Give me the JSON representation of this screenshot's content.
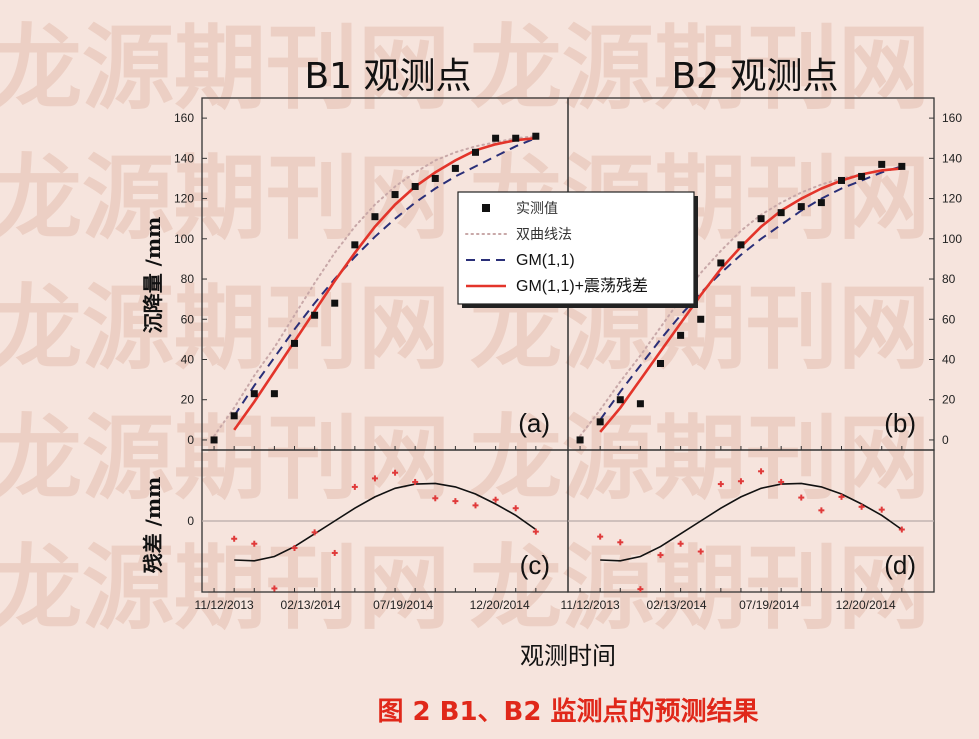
{
  "caption": "图 2   B1、B2 监测点的预测结果",
  "x_label": "观测时间",
  "y_label_top": "沉降量 /mm",
  "y_label_bottom": "残差 /mm",
  "watermark_text": "龙源期刊网",
  "colors": {
    "background": "#f6e4dd",
    "measured": "#111111",
    "double_curve": "#c8a8a8",
    "gm": "#2a2f78",
    "gm_resid": "#e3342a",
    "residual_points": "#e03a3a",
    "residual_curve": "#111111",
    "zero_line": "#b8aaa8",
    "caption": "#e0281a"
  },
  "legend": {
    "items": [
      {
        "key": "measured",
        "label": "实测值"
      },
      {
        "key": "double",
        "label": "双曲线法"
      },
      {
        "key": "gm",
        "label": "GM(1,1)"
      },
      {
        "key": "gmres",
        "label": "GM(1,1)+震荡残差"
      }
    ]
  },
  "chart_data": [
    {
      "panel": "a",
      "title": "B1 观测点",
      "letter": "(a)",
      "type": "line",
      "ylim": [
        -5,
        170
      ],
      "yticks": [
        0,
        20,
        40,
        60,
        80,
        100,
        120,
        140,
        160
      ],
      "x_tick_labels": [
        "11/12/2013",
        "02/13/2014",
        "07/19/2014",
        "12/20/2014"
      ],
      "x": [
        0,
        1,
        2,
        3,
        4,
        5,
        6,
        7,
        8,
        9,
        10,
        11,
        12,
        13,
        14,
        15,
        16
      ],
      "series": [
        {
          "name": "实测值",
          "key": "measured",
          "values": [
            0,
            12,
            23,
            23,
            48,
            62,
            68,
            97,
            111,
            122,
            126,
            130,
            135,
            143,
            150,
            150,
            151
          ]
        },
        {
          "name": "双曲线法",
          "key": "double",
          "values": [
            2,
            16,
            32,
            46,
            62,
            78,
            93,
            106,
            117,
            126,
            133,
            139,
            143,
            146,
            148,
            150,
            151
          ]
        },
        {
          "name": "GM(1,1)",
          "key": "gm",
          "values": [
            null,
            12,
            27,
            41,
            55,
            68,
            80,
            91,
            101,
            110,
            118,
            125,
            131,
            136,
            141,
            146,
            150
          ]
        },
        {
          "name": "GM(1,1)+震荡残差",
          "key": "gmres",
          "values": [
            null,
            5,
            19,
            34,
            49,
            64,
            79,
            93,
            106,
            117,
            126,
            133,
            139,
            144,
            147,
            149,
            150
          ]
        }
      ]
    },
    {
      "panel": "b",
      "title": "B2 观测点",
      "letter": "(b)",
      "type": "line",
      "ylim": [
        -5,
        170
      ],
      "yticks": [
        0,
        20,
        40,
        60,
        80,
        100,
        120,
        140,
        160
      ],
      "x_tick_labels": [
        "11/12/2013",
        "02/13/2014",
        "07/19/2014",
        "12/20/2014"
      ],
      "x": [
        0,
        1,
        2,
        3,
        4,
        5,
        6,
        7,
        8,
        9,
        10,
        11,
        12,
        13,
        14,
        15,
        16
      ],
      "series": [
        {
          "name": "实测值",
          "key": "measured",
          "values": [
            0,
            9,
            20,
            18,
            38,
            52,
            60,
            88,
            97,
            110,
            113,
            116,
            118,
            129,
            131,
            137,
            136
          ]
        },
        {
          "name": "双曲线法",
          "key": "double",
          "values": [
            2,
            15,
            29,
            42,
            56,
            70,
            83,
            94,
            104,
            112,
            118,
            123,
            127,
            130,
            132,
            134,
            135
          ]
        },
        {
          "name": "GM(1,1)",
          "key": "gm",
          "values": [
            null,
            10,
            24,
            37,
            50,
            62,
            73,
            83,
            92,
            100,
            107,
            114,
            120,
            125,
            129,
            133,
            136
          ]
        },
        {
          "name": "GM(1,1)+震荡残差",
          "key": "gmres",
          "values": [
            null,
            4,
            16,
            30,
            44,
            58,
            72,
            85,
            96,
            106,
            114,
            120,
            125,
            129,
            132,
            134,
            135
          ]
        }
      ]
    },
    {
      "panel": "c",
      "letter": "(c)",
      "type": "scatter",
      "ylim": [
        -10,
        10
      ],
      "yticks": [
        0
      ],
      "x_tick_labels": [
        "11/12/2013",
        "02/13/2014",
        "07/19/2014",
        "12/20/2014"
      ],
      "x": [
        1,
        2,
        3,
        4,
        5,
        6,
        7,
        8,
        9,
        10,
        11,
        12,
        13,
        14,
        15,
        16
      ],
      "series": [
        {
          "name": "残差",
          "key": "residual_points",
          "values": [
            -2.5,
            -3.2,
            -9.5,
            -3.8,
            -1.6,
            -4.5,
            4.8,
            6.0,
            6.8,
            5.5,
            3.2,
            2.8,
            2.2,
            3.0,
            1.8,
            -1.5
          ]
        },
        {
          "name": "震荡残差拟合",
          "key": "residual_curve",
          "values": [
            -5.5,
            -5.6,
            -5.0,
            -3.6,
            -1.8,
            0.0,
            1.8,
            3.4,
            4.6,
            5.2,
            5.3,
            4.8,
            3.8,
            2.4,
            0.8,
            -1.2
          ]
        }
      ]
    },
    {
      "panel": "d",
      "letter": "(d)",
      "type": "scatter",
      "ylim": [
        -10,
        10
      ],
      "yticks": [
        0
      ],
      "x_tick_labels": [
        "11/12/2013",
        "02/13/2014",
        "07/19/2014",
        "12/20/2014"
      ],
      "x": [
        1,
        2,
        3,
        4,
        5,
        6,
        7,
        8,
        9,
        10,
        11,
        12,
        13,
        14,
        15,
        16
      ],
      "series": [
        {
          "name": "残差",
          "key": "residual_points",
          "values": [
            -2.2,
            -3.0,
            -9.6,
            -4.8,
            -3.2,
            -4.3,
            5.2,
            5.6,
            7.0,
            5.5,
            3.3,
            1.5,
            3.4,
            2.0,
            1.6,
            -1.2
          ]
        },
        {
          "name": "震荡残差拟合",
          "key": "residual_curve",
          "values": [
            -5.5,
            -5.6,
            -5.0,
            -3.6,
            -1.8,
            0.0,
            1.8,
            3.4,
            4.6,
            5.2,
            5.3,
            4.8,
            3.8,
            2.4,
            0.8,
            -1.2
          ]
        }
      ]
    }
  ]
}
